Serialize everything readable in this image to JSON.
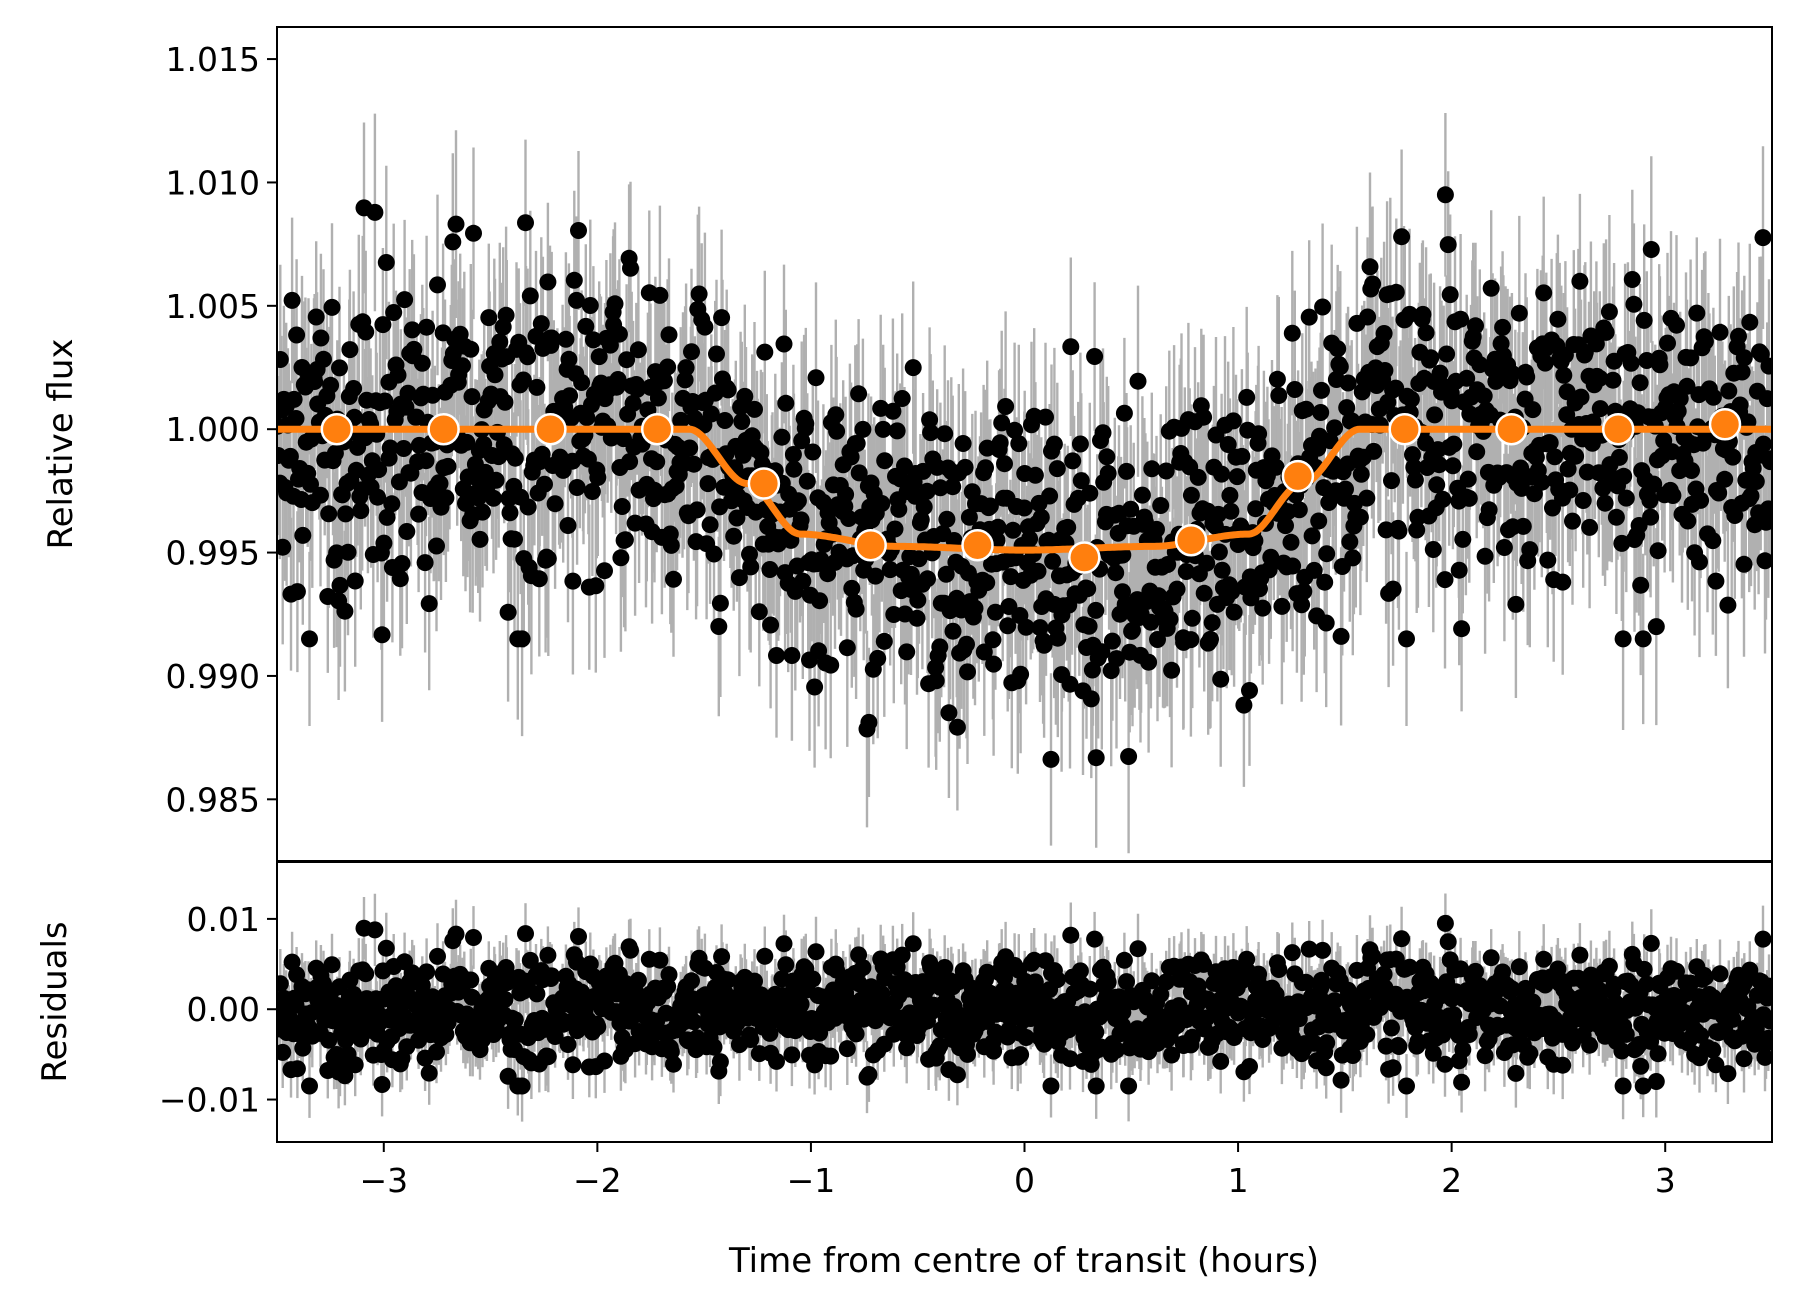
{
  "chart_data": [
    {
      "type": "scatter",
      "panel": "main",
      "xlabel": "",
      "ylabel": "Relative flux",
      "xlim": [
        -3.5,
        3.5
      ],
      "ylim": [
        0.9825,
        1.0163
      ],
      "yticks": [
        0.985,
        0.99,
        0.995,
        1.0,
        1.005,
        1.01,
        1.015
      ],
      "ytick_labels": [
        "0.985",
        "0.990",
        "0.995",
        "1.000",
        "1.005",
        "1.010",
        "1.015"
      ],
      "grid": false,
      "colors": {
        "data": "#000000",
        "errorbar": "#b0b0b0",
        "model": "#ff7f0e",
        "binned_edge": "#ffffff"
      },
      "point_count": 1400,
      "model": {
        "name": "",
        "baseline": 1.0,
        "depth": 0.0049,
        "ingress_start": -1.57,
        "ingress_end": -1.05,
        "egress_start": 1.05,
        "egress_end": 1.57,
        "x": [
          -3.5,
          -1.57,
          -1.3,
          -1.05,
          -0.6,
          0.0,
          0.6,
          1.05,
          1.3,
          1.57,
          3.5
        ],
        "y": [
          1.0,
          1.0,
          0.9978,
          0.99575,
          0.99525,
          0.9951,
          0.99525,
          0.99575,
          0.9978,
          1.0,
          1.0
        ]
      },
      "binned": {
        "x": [
          -3.22,
          -2.72,
          -2.22,
          -1.72,
          -1.22,
          -0.72,
          -0.22,
          0.28,
          0.78,
          1.28,
          1.78,
          2.28,
          2.78,
          3.28
        ],
        "y": [
          1.0,
          1.0,
          1.0,
          1.0,
          0.9978,
          0.9953,
          0.9953,
          0.9948,
          0.9955,
          0.9981,
          1.0,
          1.0,
          1.0,
          1.0002
        ]
      },
      "scatter_sigma": 0.0032,
      "errorbar_half_height": 0.0035
    },
    {
      "type": "scatter",
      "panel": "residuals",
      "xlabel": "Time from centre of transit (hours)",
      "ylabel": "Residuals",
      "xlim": [
        -3.5,
        3.5
      ],
      "ylim": [
        -0.0147,
        0.0163
      ],
      "xticks": [
        -3,
        -2,
        -1,
        0,
        1,
        2,
        3
      ],
      "xtick_labels": [
        "−3",
        "−2",
        "−1",
        "0",
        "1",
        "2",
        "3"
      ],
      "yticks": [
        -0.01,
        0.0,
        0.01
      ],
      "ytick_labels": [
        "−0.01",
        "0.00",
        "0.01"
      ],
      "grid": false,
      "colors": {
        "data": "#000000",
        "errorbar": "#b0b0b0"
      },
      "point_count": 1400,
      "scatter_sigma": 0.0032,
      "errorbar_half_height": 0.0035
    }
  ]
}
